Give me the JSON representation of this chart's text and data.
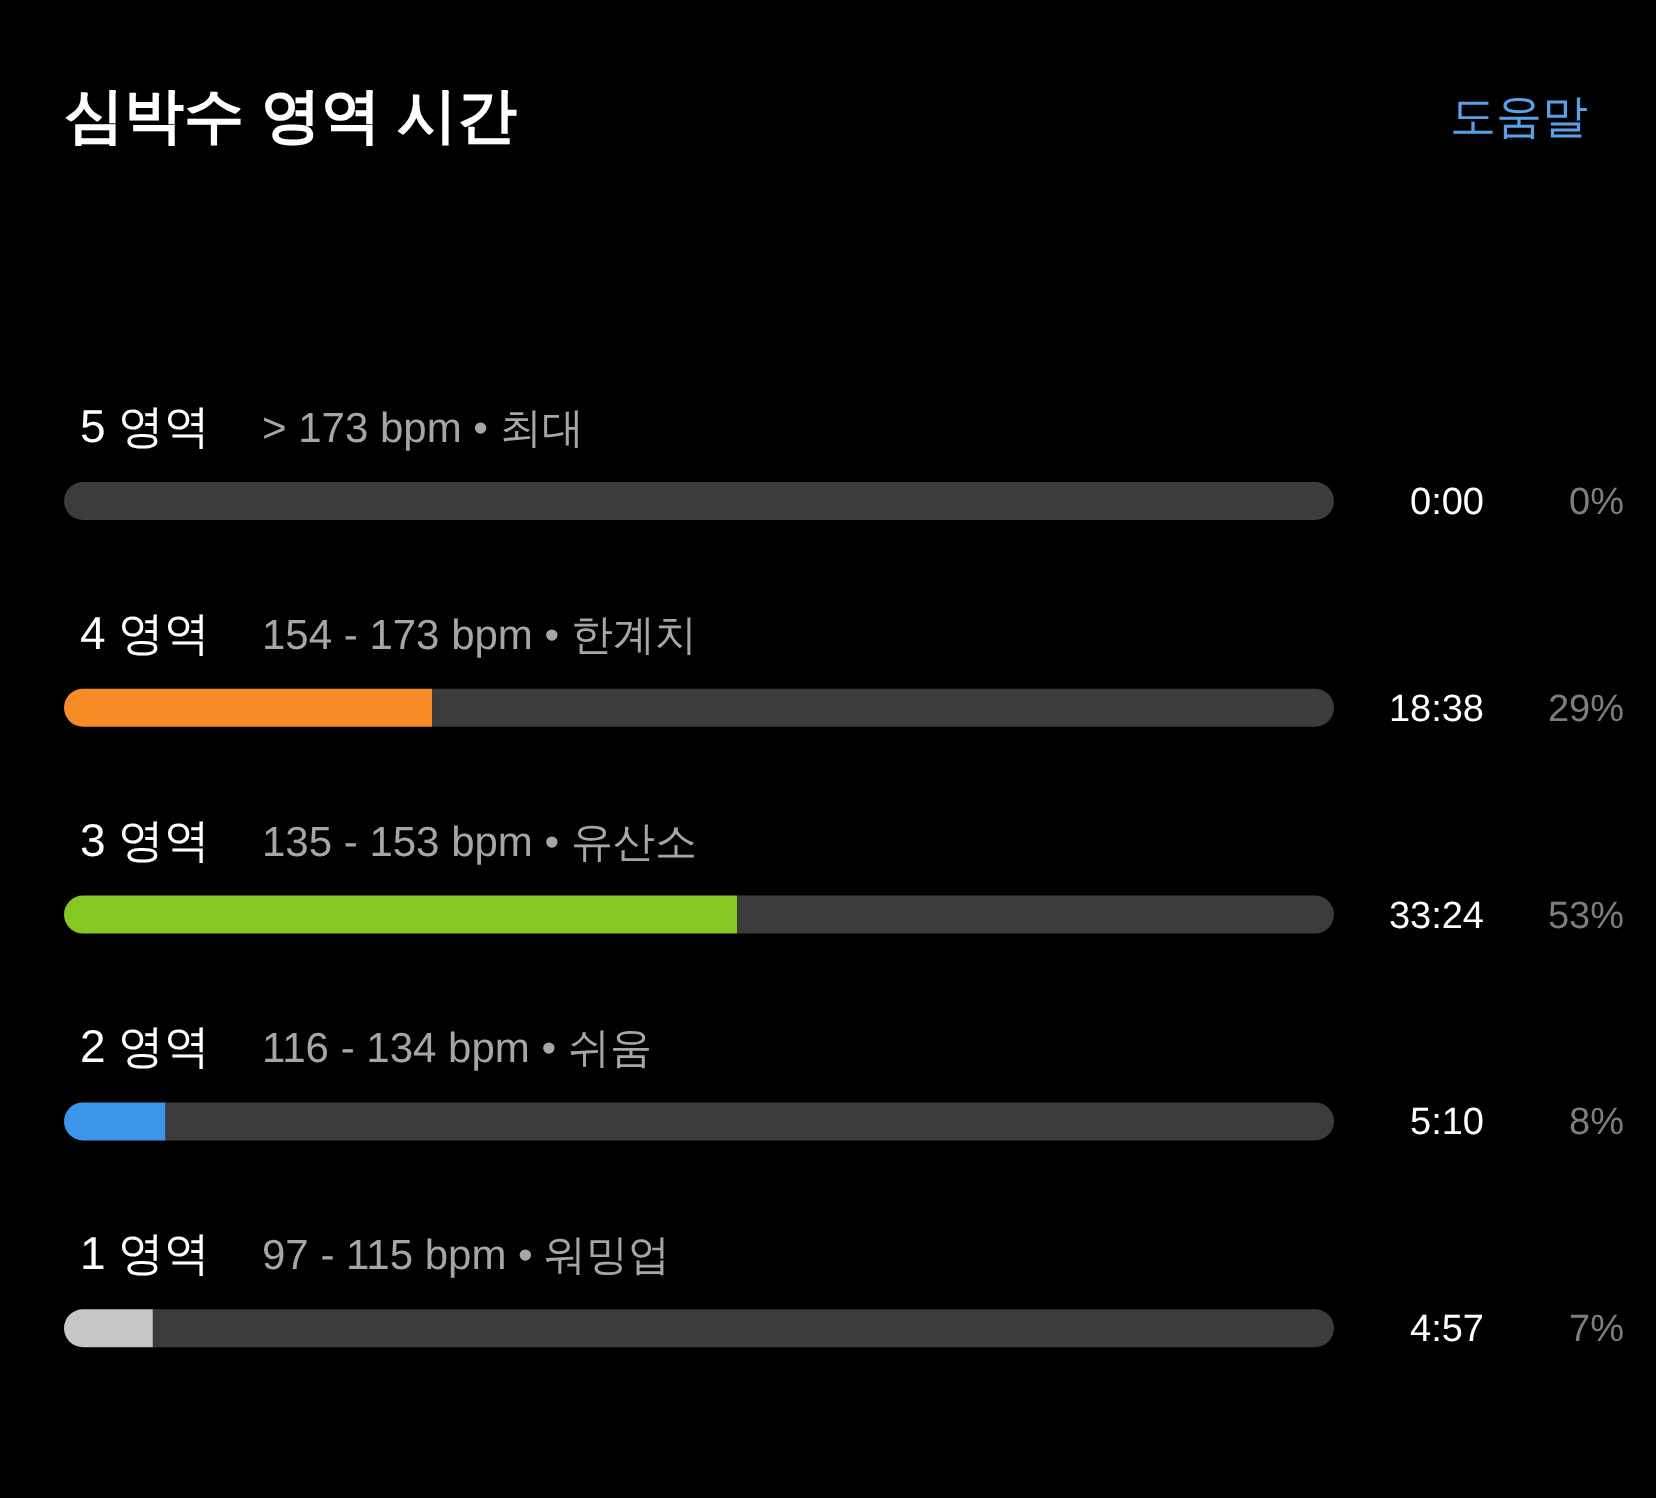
{
  "chart_data": {
    "type": "bar",
    "orientation": "horizontal",
    "stacked": true,
    "title": "심박수 영역 시간",
    "categories": [
      "5 영역",
      "4 영역",
      "3 영역",
      "2 영역",
      "1 영역"
    ],
    "xlim": [
      0,
      100
    ],
    "series": [
      {
        "values": [
          0,
          29,
          53,
          8,
          7
        ],
        "colors": [
          null,
          "#f68c27",
          "#85c822",
          "#3b95ea",
          "#c6c6c6"
        ],
        "value_labels": [
          "0%",
          "29%",
          "53%",
          "8%",
          "7%"
        ]
      },
      {
        "color": "#3c3c3c",
        "values": [
          100,
          71,
          47,
          92,
          93
        ]
      }
    ],
    "annotations": [
      "도움말",
      "> 173 bpm • 최대",
      "154 - 173 bpm • 한계치",
      "135 - 153 bpm • 유산소",
      "116 - 134 bpm • 쉬움",
      "97 - 115 bpm • 워밍업",
      "0:00",
      "18:38",
      "33:24",
      "5:10",
      "4:57"
    ]
  }
}
